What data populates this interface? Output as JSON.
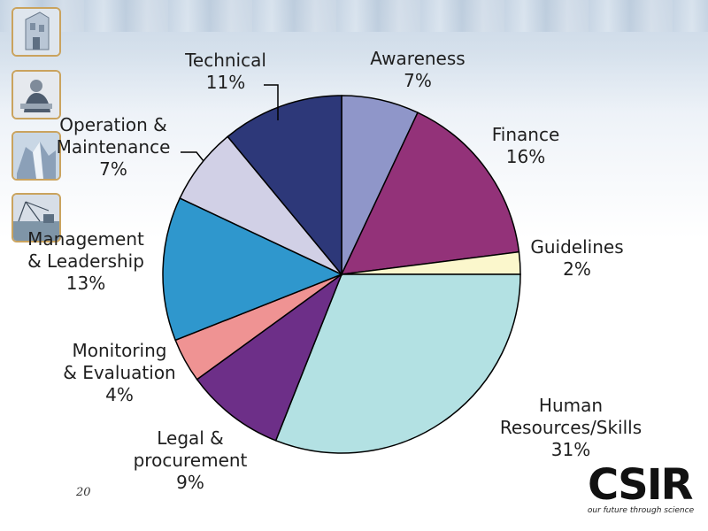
{
  "slide": {
    "page_number": "20"
  },
  "logo": {
    "wordmark": "CSIR",
    "tagline": "our future through science"
  },
  "thumbnails": [
    {
      "name": "building-photo"
    },
    {
      "name": "worker-photo"
    },
    {
      "name": "waterfall-photo"
    },
    {
      "name": "field-photo"
    }
  ],
  "colors": {
    "awareness": "#8f96c9",
    "finance": "#933279",
    "guidelines": "#fbf7cc",
    "human_resources": "#b3e1e3",
    "legal": "#6d2f88",
    "monitoring": "#ef9393",
    "management": "#2f97cd",
    "operation": "#d1d0e6",
    "technical": "#2d3879",
    "frame": "#caa35e"
  },
  "chart_data": {
    "type": "pie",
    "title": "",
    "slices": [
      {
        "key": "awareness",
        "label_lines": [
          "Awareness",
          "7%"
        ],
        "value": 7
      },
      {
        "key": "finance",
        "label_lines": [
          "Finance",
          "16%"
        ],
        "value": 16
      },
      {
        "key": "guidelines",
        "label_lines": [
          "Guidelines",
          "2%"
        ],
        "value": 2
      },
      {
        "key": "human_resources",
        "label_lines": [
          "Human",
          "Resources/Skills",
          "31%"
        ],
        "value": 31
      },
      {
        "key": "legal",
        "label_lines": [
          "Legal &",
          "procurement",
          "9%"
        ],
        "value": 9
      },
      {
        "key": "monitoring",
        "label_lines": [
          "Monitoring",
          "& Evaluation",
          "4%"
        ],
        "value": 4
      },
      {
        "key": "management",
        "label_lines": [
          "Management",
          "& Leadership",
          "13%"
        ],
        "value": 13
      },
      {
        "key": "operation",
        "label_lines": [
          "Operation &",
          "Maintenance",
          "7%"
        ],
        "value": 7
      },
      {
        "key": "technical",
        "label_lines": [
          "Technical",
          "11%"
        ],
        "value": 11
      }
    ]
  }
}
